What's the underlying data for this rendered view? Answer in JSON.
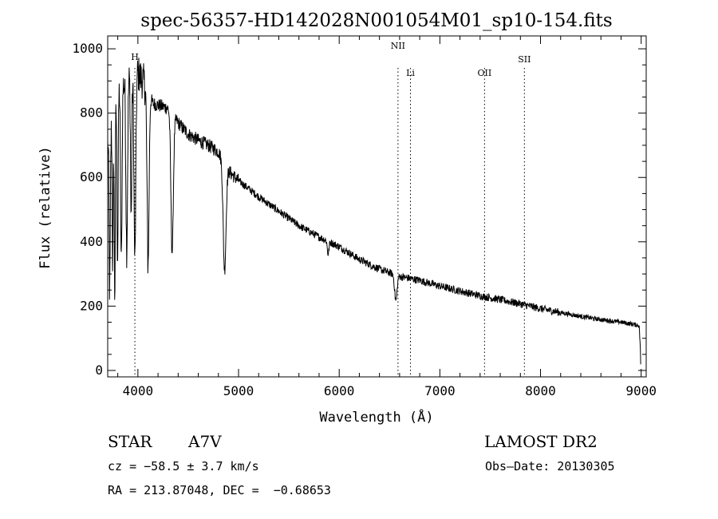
{
  "chart_data": {
    "type": "line",
    "title": "spec-56357-HD142028N001054M01_sp10-154.fits",
    "xlabel": "Wavelength (Å)",
    "ylabel": "Flux (relative)",
    "xlim": [
      3700,
      9050
    ],
    "ylim": [
      -20,
      1040
    ],
    "xticks": [
      4000,
      5000,
      6000,
      7000,
      8000,
      9000
    ],
    "yticks": [
      0,
      200,
      400,
      600,
      800,
      1000
    ],
    "grid": false,
    "color": "#000000",
    "line_markers": [
      {
        "label": "H",
        "x": 3970
      },
      {
        "label": "NII",
        "x": 6584
      },
      {
        "label": "Li",
        "x": 6708
      },
      {
        "label": "OII",
        "x": 7444
      },
      {
        "label": "SII",
        "x": 7840
      }
    ],
    "continuum": [
      [
        3700,
        700
      ],
      [
        3800,
        880
      ],
      [
        3900,
        900
      ],
      [
        3970,
        940
      ],
      [
        4050,
        900
      ],
      [
        4150,
        830
      ],
      [
        4300,
        815
      ],
      [
        4400,
        770
      ],
      [
        4500,
        735
      ],
      [
        4600,
        715
      ],
      [
        4700,
        700
      ],
      [
        4800,
        680
      ],
      [
        4900,
        620
      ],
      [
        5000,
        590
      ],
      [
        5200,
        540
      ],
      [
        5400,
        495
      ],
      [
        5600,
        450
      ],
      [
        5800,
        415
      ],
      [
        6000,
        385
      ],
      [
        6200,
        345
      ],
      [
        6400,
        315
      ],
      [
        6600,
        292
      ],
      [
        6800,
        280
      ],
      [
        7000,
        262
      ],
      [
        7200,
        247
      ],
      [
        7400,
        232
      ],
      [
        7600,
        220
      ],
      [
        7800,
        207
      ],
      [
        8000,
        192
      ],
      [
        8200,
        180
      ],
      [
        8400,
        168
      ],
      [
        8600,
        158
      ],
      [
        8800,
        150
      ],
      [
        8980,
        140
      ],
      [
        9000,
        20
      ]
    ],
    "absorption_features": [
      {
        "x": 3720,
        "depth": 500,
        "width": 6
      },
      {
        "x": 3750,
        "depth": 480,
        "width": 5
      },
      {
        "x": 3770,
        "depth": 600,
        "width": 5
      },
      {
        "x": 3798,
        "depth": 520,
        "width": 6
      },
      {
        "x": 3835,
        "depth": 560,
        "width": 7
      },
      {
        "x": 3889,
        "depth": 520,
        "width": 8
      },
      {
        "x": 3933,
        "depth": 450,
        "width": 6
      },
      {
        "x": 3970,
        "depth": 600,
        "width": 9
      },
      {
        "x": 4101,
        "depth": 530,
        "width": 10
      },
      {
        "x": 4340,
        "depth": 430,
        "width": 12
      },
      {
        "x": 4861,
        "depth": 330,
        "width": 14
      },
      {
        "x": 5890,
        "depth": 40,
        "width": 8
      },
      {
        "x": 6563,
        "depth": 80,
        "width": 12
      }
    ],
    "noise": 12
  },
  "footer": {
    "object": "STAR",
    "subclass": "A7V",
    "survey": "LAMOST DR2",
    "redshift": "cz = −58.5 ± 3.7 km/s",
    "obs_date": "Obs–Date: 20130305",
    "coords": "RA = 213.87048, DEC =  −0.68653"
  }
}
